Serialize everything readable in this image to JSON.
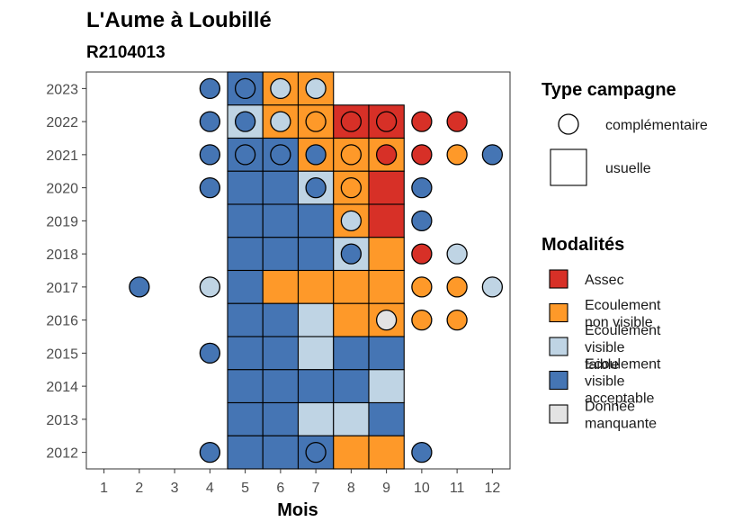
{
  "chart_data": {
    "type": "heatmap",
    "title": "L'Aume à Loubillé",
    "subtitle": "R2104013",
    "xlabel": "Mois",
    "x": [
      1,
      2,
      3,
      4,
      5,
      6,
      7,
      8,
      9,
      10,
      11,
      12
    ],
    "y": [
      2012,
      2013,
      2014,
      2015,
      2016,
      2017,
      2018,
      2019,
      2020,
      2021,
      2022,
      2023
    ],
    "xlim": [
      0.5,
      12.5
    ],
    "ylim": [
      2011.5,
      2023.5
    ],
    "colors": {
      "Assec": "#d73027",
      "Ecoulement non visible": "#fe9929",
      "Ecoulement visible faible": "#bfd4e4",
      "Ecoulement visible acceptable": "#4575b4",
      "Donnée manquante": "#e3e3e3"
    },
    "legend_type": {
      "title": "Type campagne",
      "items": [
        {
          "label": "complémentaire",
          "shape": "circle"
        },
        {
          "label": "usuelle",
          "shape": "square"
        }
      ]
    },
    "legend_modalites": {
      "title": "Modalités",
      "items": [
        {
          "key": "Assec",
          "lines": [
            "Assec"
          ]
        },
        {
          "key": "Ecoulement non visible",
          "lines": [
            "Ecoulement",
            "non visible"
          ]
        },
        {
          "key": "Ecoulement visible faible",
          "lines": [
            "Ecoulement",
            "visible",
            "faible"
          ]
        },
        {
          "key": "Ecoulement visible acceptable",
          "lines": [
            "Ecoulement",
            "visible",
            "acceptable"
          ]
        },
        {
          "key": "Donnée manquante",
          "lines": [
            "Donnée",
            "manquante"
          ]
        }
      ]
    },
    "usuelle": [
      {
        "year": 2023,
        "months": {
          "5": "Ecoulement visible acceptable",
          "6": "Ecoulement non visible",
          "7": "Ecoulement non visible"
        }
      },
      {
        "year": 2022,
        "months": {
          "5": "Ecoulement visible faible",
          "6": "Ecoulement non visible",
          "7": "Ecoulement non visible",
          "8": "Assec",
          "9": "Assec"
        }
      },
      {
        "year": 2021,
        "months": {
          "5": "Ecoulement visible acceptable",
          "6": "Ecoulement visible acceptable",
          "7": "Ecoulement non visible",
          "8": "Ecoulement non visible",
          "9": "Ecoulement non visible"
        }
      },
      {
        "year": 2020,
        "months": {
          "5": "Ecoulement visible acceptable",
          "6": "Ecoulement visible acceptable",
          "7": "Ecoulement visible faible",
          "8": "Ecoulement non visible",
          "9": "Assec"
        }
      },
      {
        "year": 2019,
        "months": {
          "5": "Ecoulement visible acceptable",
          "6": "Ecoulement visible acceptable",
          "7": "Ecoulement visible acceptable",
          "8": "Ecoulement non visible",
          "9": "Assec"
        }
      },
      {
        "year": 2018,
        "months": {
          "5": "Ecoulement visible acceptable",
          "6": "Ecoulement visible acceptable",
          "7": "Ecoulement visible acceptable",
          "8": "Ecoulement visible faible",
          "9": "Ecoulement non visible"
        }
      },
      {
        "year": 2017,
        "months": {
          "5": "Ecoulement visible acceptable",
          "6": "Ecoulement non visible",
          "7": "Ecoulement non visible",
          "8": "Ecoulement non visible",
          "9": "Ecoulement non visible"
        }
      },
      {
        "year": 2016,
        "months": {
          "5": "Ecoulement visible acceptable",
          "6": "Ecoulement visible acceptable",
          "7": "Ecoulement visible faible",
          "8": "Ecoulement non visible",
          "9": "Ecoulement non visible"
        }
      },
      {
        "year": 2015,
        "months": {
          "5": "Ecoulement visible acceptable",
          "6": "Ecoulement visible acceptable",
          "7": "Ecoulement visible faible",
          "8": "Ecoulement visible acceptable",
          "9": "Ecoulement visible acceptable"
        }
      },
      {
        "year": 2014,
        "months": {
          "5": "Ecoulement visible acceptable",
          "6": "Ecoulement visible acceptable",
          "7": "Ecoulement visible acceptable",
          "8": "Ecoulement visible acceptable",
          "9": "Ecoulement visible faible"
        }
      },
      {
        "year": 2013,
        "months": {
          "5": "Ecoulement visible acceptable",
          "6": "Ecoulement visible acceptable",
          "7": "Ecoulement visible faible",
          "8": "Ecoulement visible faible",
          "9": "Ecoulement visible acceptable"
        }
      },
      {
        "year": 2012,
        "months": {
          "5": "Ecoulement visible acceptable",
          "6": "Ecoulement visible acceptable",
          "7": "Ecoulement visible acceptable",
          "8": "Ecoulement non visible",
          "9": "Ecoulement non visible"
        }
      }
    ],
    "complementaire": [
      {
        "year": 2023,
        "months": {
          "4": "Ecoulement visible acceptable",
          "5": "Ecoulement visible acceptable",
          "6": "Ecoulement visible faible",
          "7": "Ecoulement visible faible"
        }
      },
      {
        "year": 2022,
        "months": {
          "4": "Ecoulement visible acceptable",
          "5": "Ecoulement visible acceptable",
          "6": "Ecoulement visible faible",
          "7": "Ecoulement non visible",
          "8": "Assec",
          "9": "Assec",
          "10": "Assec",
          "11": "Assec"
        }
      },
      {
        "year": 2021,
        "months": {
          "4": "Ecoulement visible acceptable",
          "5": "Ecoulement visible acceptable",
          "6": "Ecoulement visible acceptable",
          "7": "Ecoulement visible acceptable",
          "8": "Ecoulement non visible",
          "9": "Assec",
          "10": "Assec",
          "11": "Ecoulement non visible",
          "12": "Ecoulement visible acceptable"
        }
      },
      {
        "year": 2020,
        "months": {
          "4": "Ecoulement visible acceptable",
          "7": "Ecoulement visible acceptable",
          "8": "Ecoulement non visible",
          "10": "Ecoulement visible acceptable"
        }
      },
      {
        "year": 2019,
        "months": {
          "8": "Ecoulement visible faible",
          "10": "Ecoulement visible acceptable"
        }
      },
      {
        "year": 2018,
        "months": {
          "8": "Ecoulement visible acceptable",
          "10": "Assec",
          "11": "Ecoulement visible faible"
        }
      },
      {
        "year": 2017,
        "months": {
          "2": "Ecoulement visible acceptable",
          "4": "Ecoulement visible faible",
          "10": "Ecoulement non visible",
          "11": "Ecoulement non visible",
          "12": "Ecoulement visible faible"
        }
      },
      {
        "year": 2016,
        "months": {
          "9": "Donnée manquante",
          "10": "Ecoulement non visible",
          "11": "Ecoulement non visible"
        }
      },
      {
        "year": 2015,
        "months": {
          "4": "Ecoulement visible acceptable"
        }
      },
      {
        "year": 2012,
        "months": {
          "4": "Ecoulement visible acceptable",
          "7": "Ecoulement visible acceptable",
          "10": "Ecoulement visible acceptable"
        }
      }
    ]
  }
}
